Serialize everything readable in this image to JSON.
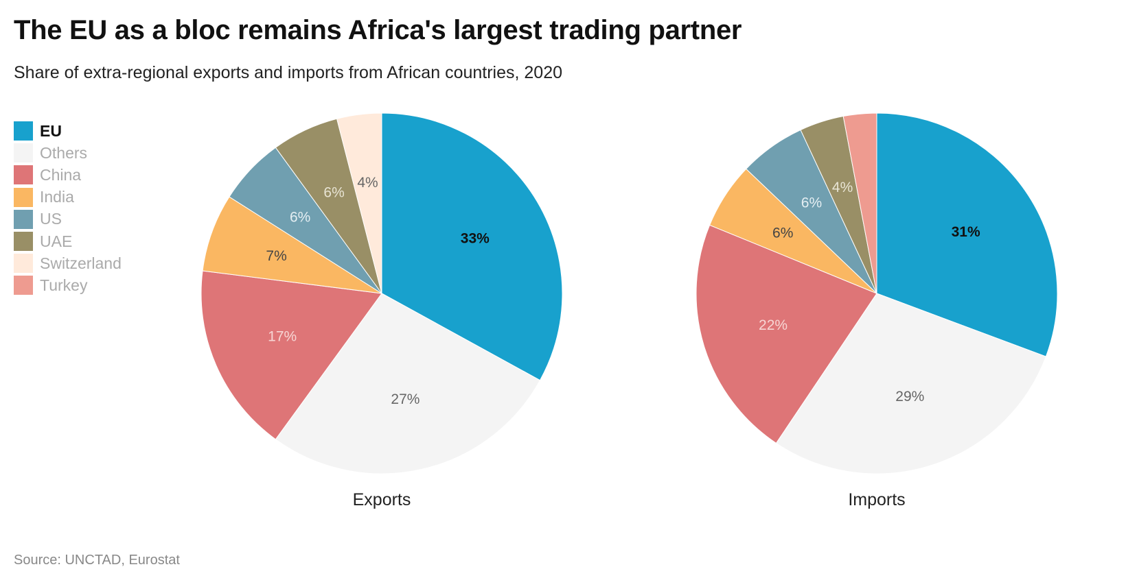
{
  "title": "The EU as a bloc remains Africa's largest trading partner",
  "subtitle": "Share of extra-regional exports and imports from African countries, 2020",
  "source": "Source: UNCTAD, Eurostat",
  "legend": [
    {
      "label": "EU",
      "color": "#18a1cd",
      "active": true
    },
    {
      "label": "Others",
      "color": "#f4f4f4"
    },
    {
      "label": "China",
      "color": "#de7577"
    },
    {
      "label": "India",
      "color": "#fab762"
    },
    {
      "label": "US",
      "color": "#709fb0"
    },
    {
      "label": "UAE",
      "color": "#998f66"
    },
    {
      "label": "Switzerland",
      "color": "#ffeadb"
    },
    {
      "label": "Turkey",
      "color": "#ee9b90"
    }
  ],
  "chart_data": [
    {
      "type": "pie",
      "title": "Exports",
      "categories": [
        "EU",
        "Others",
        "China",
        "India",
        "US",
        "UAE",
        "Switzerland",
        "Turkey"
      ],
      "values": [
        33,
        27,
        17,
        7,
        6,
        6,
        4,
        0
      ],
      "labels": [
        "33%",
        "27%",
        "17%",
        "7%",
        "6%",
        "6%",
        "4%",
        ""
      ]
    },
    {
      "type": "pie",
      "title": "Imports",
      "categories": [
        "EU",
        "Others",
        "China",
        "India",
        "US",
        "UAE",
        "Switzerland",
        "Turkey"
      ],
      "values": [
        31,
        29,
        22,
        6,
        6,
        4,
        0,
        3
      ],
      "labels": [
        "31%",
        "29%",
        "22%",
        "6%",
        "6%",
        "4%",
        "",
        ""
      ]
    }
  ]
}
